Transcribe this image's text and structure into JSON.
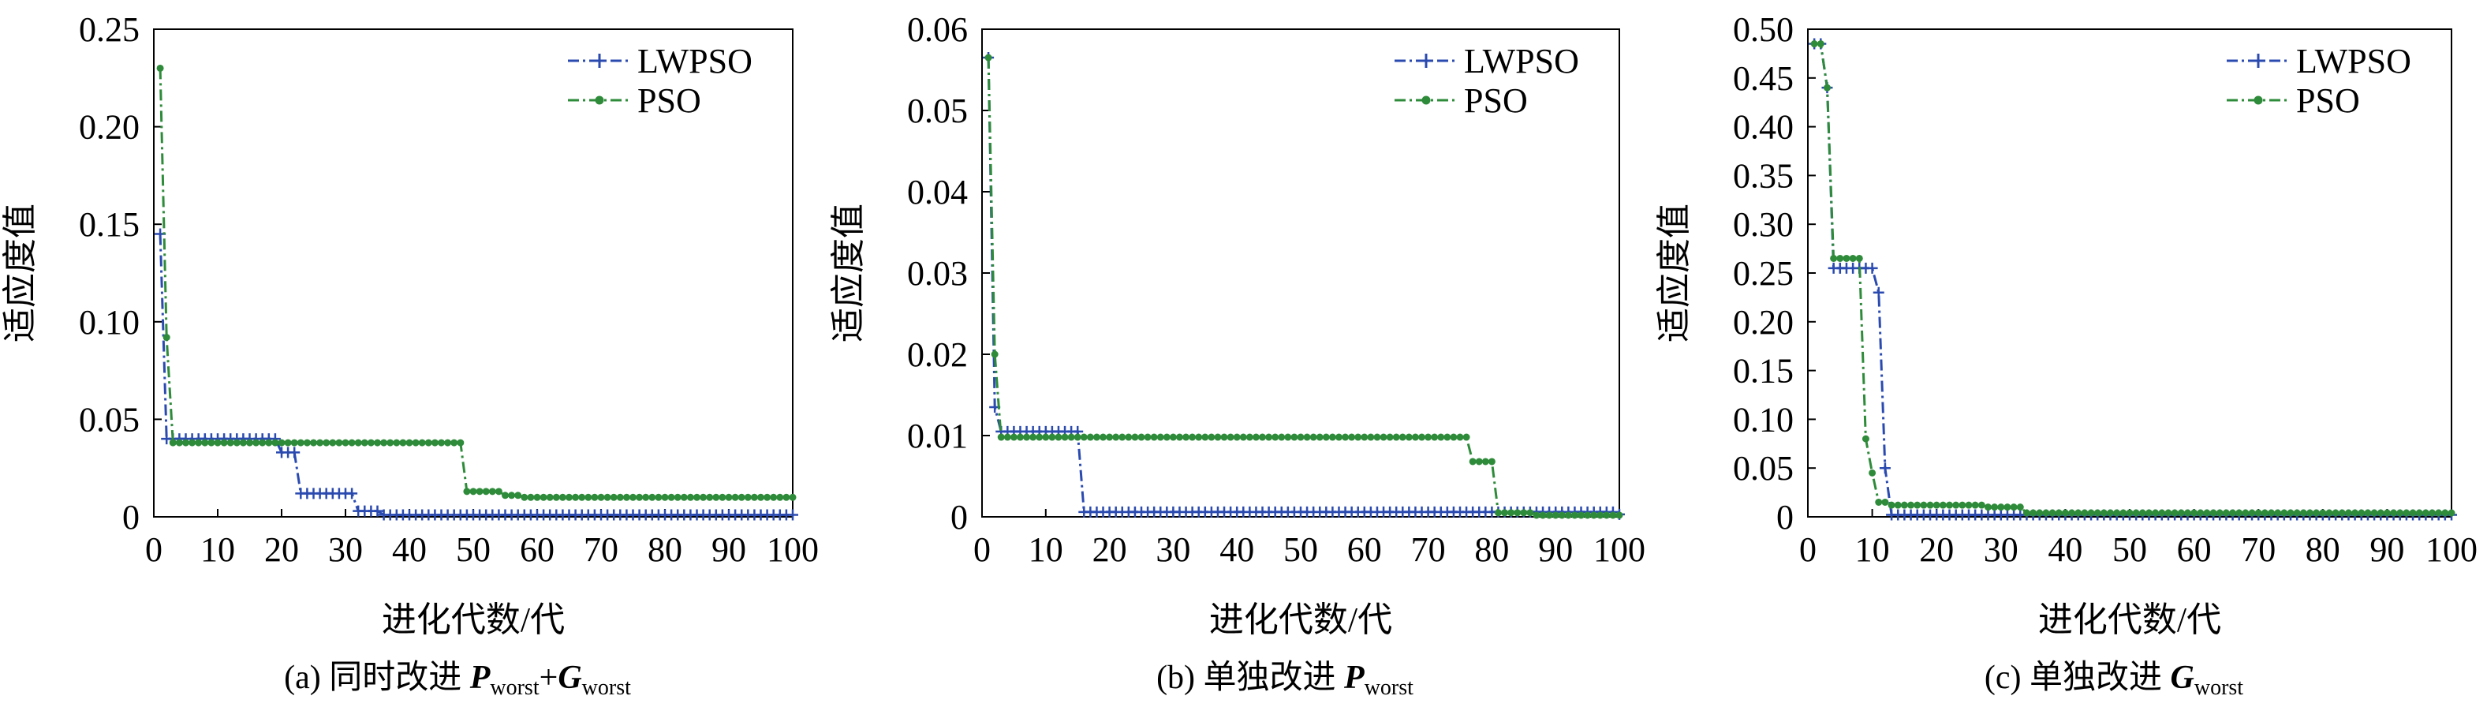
{
  "chart_data": [
    {
      "type": "line",
      "caption": {
        "prefix": "(a) 同时改进 ",
        "p1": "P",
        "s1": "worst",
        "plus": "+",
        "p2": "G",
        "s2": "worst"
      },
      "xlabel": "进化代数/代",
      "ylabel": "适应度值",
      "xlim": [
        0,
        100
      ],
      "ylim": [
        0,
        0.25
      ],
      "xticks": [
        0,
        10,
        20,
        30,
        40,
        50,
        60,
        70,
        80,
        90,
        100
      ],
      "yticks": [
        0,
        0.05,
        0.1,
        0.15,
        0.2,
        0.25
      ],
      "ytick_labels": [
        "0",
        "0.05",
        "0.10",
        "0.15",
        "0.20",
        "0.25"
      ],
      "legend_position": "top-right",
      "series": [
        {
          "name": "LWPSO",
          "color": "#2a4ab0",
          "marker": "plus",
          "points": [
            [
              1,
              0.145
            ],
            [
              2,
              0.04
            ],
            [
              19,
              0.04
            ],
            [
              20,
              0.033
            ],
            [
              22,
              0.033
            ],
            [
              23,
              0.012
            ],
            [
              31,
              0.012
            ],
            [
              32,
              0.003
            ],
            [
              35,
              0.003
            ],
            [
              36,
              0.001
            ],
            [
              100,
              0.001
            ]
          ]
        },
        {
          "name": "PSO",
          "color": "#2e8b3a",
          "marker": "dot",
          "points": [
            [
              1,
              0.23
            ],
            [
              2,
              0.092
            ],
            [
              3,
              0.038
            ],
            [
              48,
              0.038
            ],
            [
              49,
              0.013
            ],
            [
              53,
              0.013
            ],
            [
              55,
              0.011
            ],
            [
              58,
              0.01
            ],
            [
              100,
              0.01
            ]
          ]
        }
      ]
    },
    {
      "type": "line",
      "caption": {
        "prefix": "(b) 单独改进 ",
        "p1": "P",
        "s1": "worst"
      },
      "xlabel": "进化代数/代",
      "ylabel": "适应度值",
      "xlim": [
        0,
        100
      ],
      "ylim": [
        0,
        0.06
      ],
      "xticks": [
        0,
        10,
        20,
        30,
        40,
        50,
        60,
        70,
        80,
        90,
        100
      ],
      "yticks": [
        0,
        0.01,
        0.02,
        0.03,
        0.04,
        0.05,
        0.06
      ],
      "ytick_labels": [
        "0",
        "0.01",
        "0.02",
        "0.03",
        "0.04",
        "0.05",
        "0.06"
      ],
      "legend_position": "top-right",
      "series": [
        {
          "name": "LWPSO",
          "color": "#2a4ab0",
          "marker": "plus",
          "points": [
            [
              1,
              0.0565
            ],
            [
              2,
              0.0135
            ],
            [
              3,
              0.0105
            ],
            [
              15,
              0.0105
            ],
            [
              16,
              0.0006
            ],
            [
              100,
              0.0003
            ]
          ]
        },
        {
          "name": "PSO",
          "color": "#2e8b3a",
          "marker": "dot",
          "points": [
            [
              1,
              0.0565
            ],
            [
              2,
              0.02
            ],
            [
              3,
              0.0098
            ],
            [
              76,
              0.0098
            ],
            [
              77,
              0.0068
            ],
            [
              80,
              0.0068
            ],
            [
              81,
              0.0005
            ],
            [
              85,
              0.0005
            ],
            [
              87,
              0.0002
            ],
            [
              100,
              0.0002
            ]
          ]
        }
      ]
    },
    {
      "type": "line",
      "caption": {
        "prefix": "(c) 单独改进 ",
        "p1": "G",
        "s1": "worst"
      },
      "xlabel": "进化代数/代",
      "ylabel": "适应度值",
      "xlim": [
        0,
        100
      ],
      "ylim": [
        0,
        0.5
      ],
      "xticks": [
        0,
        10,
        20,
        30,
        40,
        50,
        60,
        70,
        80,
        90,
        100
      ],
      "yticks": [
        0,
        0.05,
        0.1,
        0.15,
        0.2,
        0.25,
        0.3,
        0.35,
        0.4,
        0.45,
        0.5
      ],
      "ytick_labels": [
        "0",
        "0.05",
        "0.10",
        "0.15",
        "0.20",
        "0.25",
        "0.30",
        "0.35",
        "0.40",
        "0.45",
        "0.50"
      ],
      "legend_position": "top-right",
      "series": [
        {
          "name": "LWPSO",
          "color": "#2a4ab0",
          "marker": "plus",
          "points": [
            [
              1,
              0.485
            ],
            [
              2,
              0.485
            ],
            [
              3,
              0.44
            ],
            [
              4,
              0.255
            ],
            [
              10,
              0.255
            ],
            [
              11,
              0.23
            ],
            [
              12,
              0.05
            ],
            [
              13,
              0.002
            ],
            [
              100,
              0.002
            ]
          ]
        },
        {
          "name": "PSO",
          "color": "#2e8b3a",
          "marker": "dot",
          "points": [
            [
              1,
              0.485
            ],
            [
              2,
              0.485
            ],
            [
              3,
              0.44
            ],
            [
              4,
              0.265
            ],
            [
              8,
              0.265
            ],
            [
              9,
              0.08
            ],
            [
              10,
              0.045
            ],
            [
              11,
              0.015
            ],
            [
              13,
              0.012
            ],
            [
              27,
              0.012
            ],
            [
              28,
              0.01
            ],
            [
              33,
              0.01
            ],
            [
              34,
              0.004
            ],
            [
              100,
              0.004
            ]
          ]
        }
      ]
    }
  ]
}
